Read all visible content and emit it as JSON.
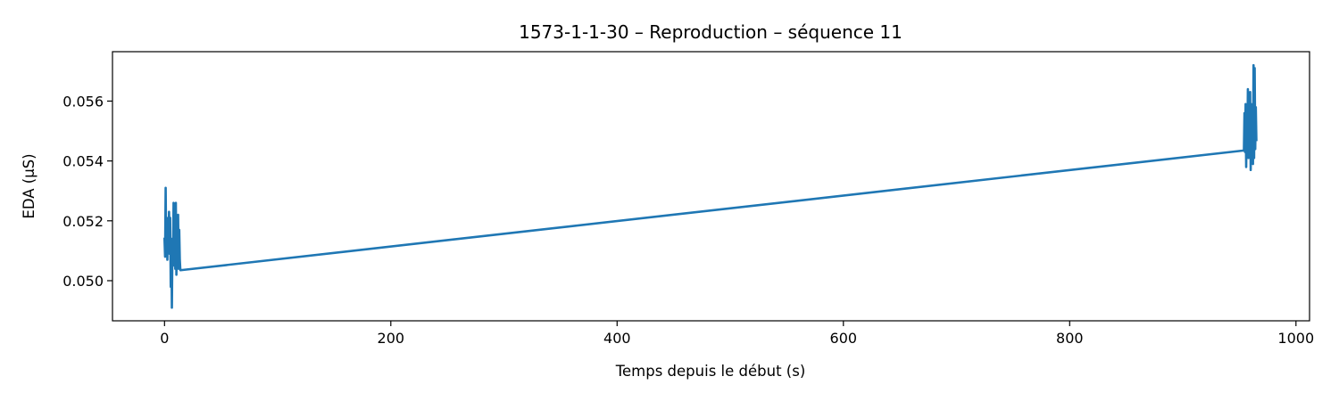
{
  "chart_data": {
    "type": "line",
    "title": "1573-1-1-30 – Reproduction – séquence 11",
    "xlabel": "Temps depuis le début (s)",
    "ylabel": "EDA (µS)",
    "xlim": [
      -46,
      1012
    ],
    "ylim": [
      0.04866,
      0.05765
    ],
    "x_ticks": [
      0,
      200,
      400,
      600,
      800,
      1000
    ],
    "x_tick_labels": [
      "0",
      "200",
      "400",
      "600",
      "800",
      "1000"
    ],
    "y_ticks": [
      0.05,
      0.052,
      0.054,
      0.056
    ],
    "y_tick_labels": [
      "0.050",
      "0.052",
      "0.054",
      "0.056"
    ],
    "grid": false,
    "series": [
      {
        "name": "EDA",
        "color": "#1f77b4",
        "x": [
          0,
          0.5,
          1,
          1.5,
          2,
          2.5,
          3,
          3.5,
          4,
          4.5,
          5,
          5.5,
          6,
          6.5,
          7,
          7.5,
          8,
          8.5,
          9,
          9.5,
          10,
          10.5,
          11,
          11.5,
          12,
          12.5,
          13,
          13.5,
          14,
          954,
          954.5,
          955,
          955.5,
          956,
          956.5,
          957,
          957.5,
          958,
          958.5,
          959,
          959.5,
          960,
          960.5,
          961,
          961.5,
          962,
          962.5,
          963,
          963.5,
          964,
          964.5,
          965
        ],
        "y": [
          0.0514,
          0.0508,
          0.0531,
          0.0509,
          0.0521,
          0.0507,
          0.0519,
          0.0511,
          0.0523,
          0.0509,
          0.0521,
          0.0498,
          0.0514,
          0.0491,
          0.0512,
          0.0505,
          0.0526,
          0.0507,
          0.0519,
          0.0504,
          0.0526,
          0.0502,
          0.0518,
          0.0506,
          0.0522,
          0.0504,
          0.0517,
          0.0507,
          0.05035,
          0.05435,
          0.0556,
          0.0543,
          0.0559,
          0.0538,
          0.0555,
          0.0543,
          0.0564,
          0.0541,
          0.0558,
          0.0545,
          0.0563,
          0.0537,
          0.0559,
          0.0542,
          0.0557,
          0.0539,
          0.0572,
          0.0541,
          0.0571,
          0.0544,
          0.0558,
          0.0547
        ]
      }
    ]
  }
}
